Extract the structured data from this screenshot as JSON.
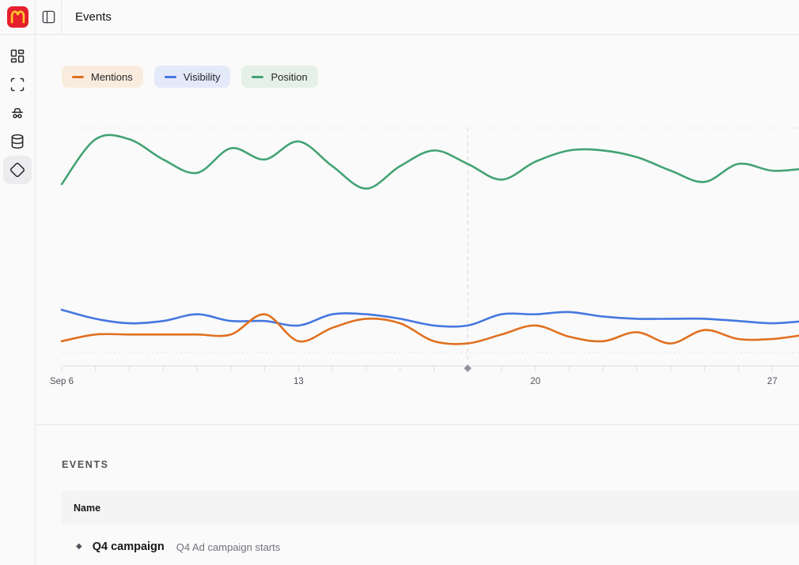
{
  "header": {
    "title": "Events"
  },
  "sidebar": {
    "items": [
      "dashboard",
      "scan",
      "incognito",
      "database",
      "events"
    ],
    "active": "events"
  },
  "legend": [
    {
      "label": "Mentions",
      "color": "#e0701f",
      "chip_bg": "#f9ecdf"
    },
    {
      "label": "Visibility",
      "color": "#4577e0",
      "chip_bg": "#e4e9fa"
    },
    {
      "label": "Position",
      "color": "#43a373",
      "chip_bg": "#e4f0e8"
    }
  ],
  "chart_data": {
    "type": "line",
    "title": "",
    "x_axis": {
      "tick_labels": [
        {
          "day": 0,
          "label": "Sep 6"
        },
        {
          "day": 7,
          "label": "13"
        },
        {
          "day": 14,
          "label": "20"
        },
        {
          "day": 21,
          "label": "27"
        }
      ],
      "minor_tick_every_days": 1,
      "total_days": 22
    },
    "y_axis": {
      "visible": false,
      "range": [
        0,
        100
      ],
      "note": "no y labels shown; values estimated on relative 0-100 scale"
    },
    "grid": {
      "horizontal": "dotted top and bottom lines only",
      "vertical": false
    },
    "legend_position": "top-left",
    "draw_order": [
      "Visibility",
      "Mentions",
      "Position"
    ],
    "series": [
      {
        "name": "Mentions",
        "color": "#e0701f",
        "values": [
          5,
          8,
          8,
          8,
          8,
          8,
          17,
          5,
          11,
          15,
          13,
          5,
          4,
          8,
          12,
          7,
          5,
          9,
          4,
          10,
          6,
          6,
          8
        ]
      },
      {
        "name": "Visibility",
        "color": "#4577e0",
        "values": [
          19,
          15,
          13,
          14,
          17,
          14,
          14,
          12,
          17,
          17,
          15,
          12,
          12,
          17,
          17,
          18,
          16,
          15,
          15,
          15,
          14,
          13,
          14
        ]
      },
      {
        "name": "Position",
        "color": "#43a373",
        "values": [
          75,
          95,
          95,
          86,
          80,
          91,
          86,
          94,
          83,
          73,
          83,
          90,
          84,
          77,
          85,
          90,
          90,
          87,
          81,
          76,
          84,
          81,
          82
        ]
      }
    ],
    "event_markers": [
      {
        "day": 12,
        "name": "Q4 campaign",
        "shape": "diamond",
        "color": "#8f939d"
      }
    ]
  },
  "events_section": {
    "heading": "EVENTS",
    "table": {
      "columns": [
        "Name"
      ],
      "rows": [
        {
          "marker": "◆",
          "name": "Q4 campaign",
          "description": "Q4 Ad campaign starts"
        }
      ]
    }
  },
  "colors": {
    "page_bg": "#fafafa",
    "border": "#e7e7e8",
    "accent_orange": "#e0701f",
    "accent_blue": "#4577e0",
    "accent_green": "#43a373",
    "brand_red": "#e6202c",
    "brand_yellow": "#ffc72c",
    "marker_gray": "#8f939d"
  }
}
